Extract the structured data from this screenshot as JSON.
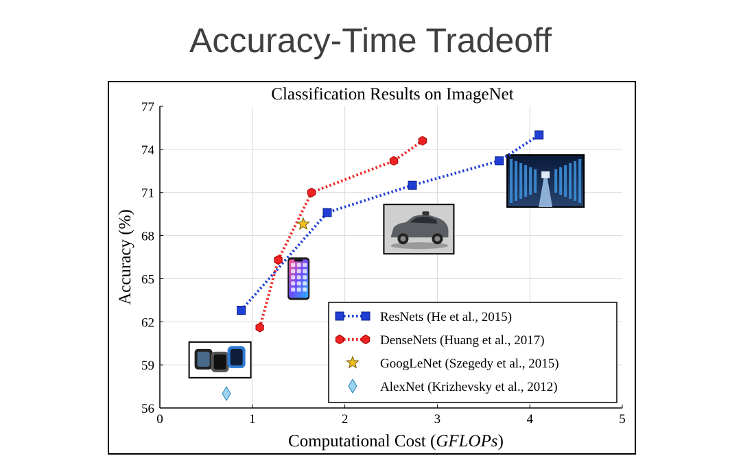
{
  "slide": {
    "title": "Accuracy-Time Tradeoff"
  },
  "colors": {
    "resnets": "#1f3fd6",
    "densenets": "#ee2222",
    "googlenet": "#f0c020",
    "alexnet": "#9cd4f0",
    "grid": "#d9d9d9"
  },
  "chart_data": {
    "type": "line",
    "title": "Classification Results on ImageNet",
    "xlabel_prefix": "Computational Cost (",
    "xlabel_unit": "GFLOPs",
    "xlabel_suffix": ")",
    "ylabel": "Accuracy (%)",
    "xlim": [
      0,
      5
    ],
    "ylim": [
      56,
      77
    ],
    "xticks": [
      0,
      1,
      2,
      3,
      4,
      5
    ],
    "yticks": [
      56,
      59,
      62,
      65,
      68,
      71,
      74,
      77
    ],
    "grid": true,
    "legend_position": "bottom-right",
    "series": [
      {
        "name": "ResNets",
        "legend_label": "ResNets  (He et al., 2015)",
        "marker": "square",
        "linestyle": "dotted",
        "points": [
          [
            0.88,
            62.8
          ],
          [
            1.81,
            69.6
          ],
          [
            2.73,
            71.5
          ],
          [
            3.67,
            73.2
          ],
          [
            4.1,
            75.0
          ]
        ]
      },
      {
        "name": "DenseNets",
        "legend_label": "DenseNets  (Huang et al., 2017)",
        "marker": "hexagon",
        "linestyle": "dotted",
        "points": [
          [
            1.08,
            61.6
          ],
          [
            1.28,
            66.3
          ],
          [
            1.64,
            71.0
          ],
          [
            2.53,
            73.2
          ],
          [
            2.84,
            74.6
          ]
        ]
      },
      {
        "name": "GoogLeNet",
        "legend_label": "GoogLeNet  (Szegedy et al., 2015)",
        "marker": "star",
        "linestyle": "none",
        "points": [
          [
            1.55,
            68.8
          ]
        ]
      },
      {
        "name": "AlexNet",
        "legend_label": "AlexNet  (Krizhevsky et al., 2012)",
        "marker": "diamond",
        "linestyle": "none",
        "points": [
          [
            0.72,
            57.0
          ]
        ]
      }
    ],
    "icons": [
      {
        "name": "smartwatch-icon",
        "x": 0.65,
        "y": 59.3
      },
      {
        "name": "smartphone-icon",
        "x": 1.5,
        "y": 65.0
      },
      {
        "name": "self-driving-car-icon",
        "x": 2.8,
        "y": 68.4
      },
      {
        "name": "datacenter-icon",
        "x": 4.17,
        "y": 71.8
      }
    ]
  }
}
